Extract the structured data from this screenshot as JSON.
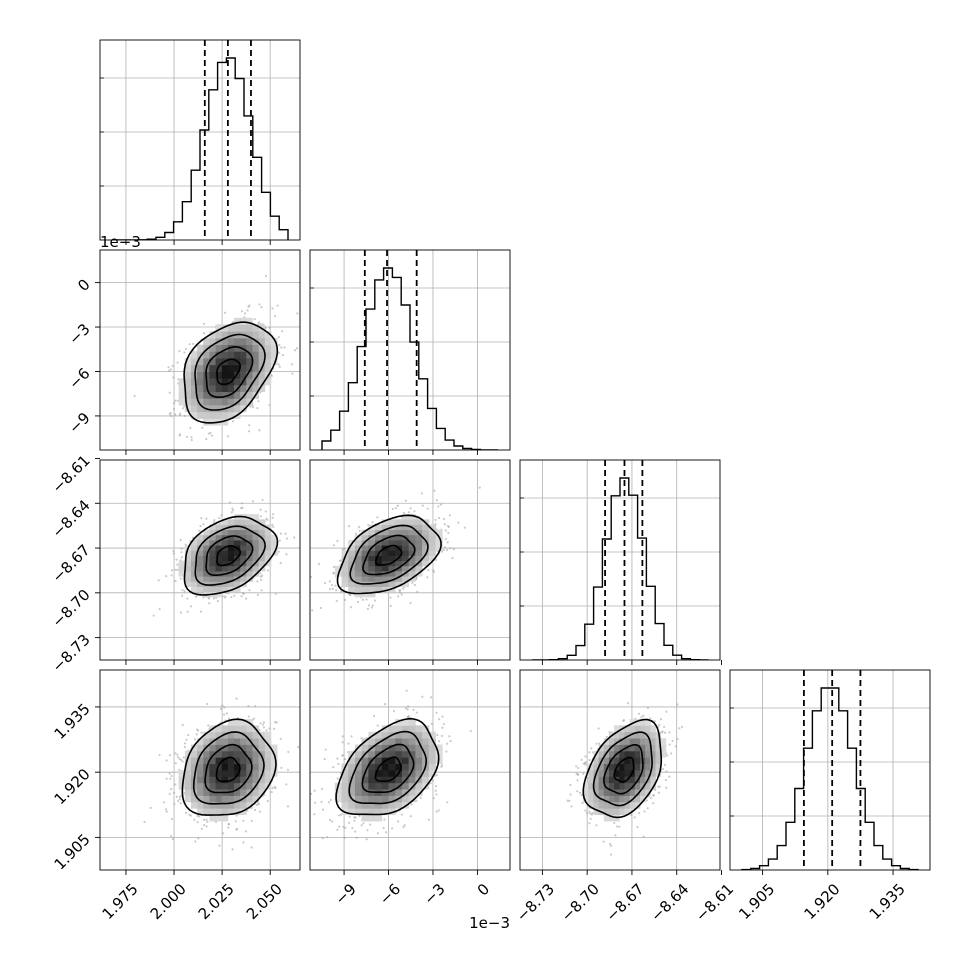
{
  "chart_data": {
    "type": "corner",
    "style": {
      "grid": true,
      "frame_color": "#000000",
      "grid_color": "#b0b0b0",
      "point_color": "#9e9e9e"
    },
    "parameters": [
      {
        "index": 0,
        "range": [
          1.9615,
          2.0655
        ],
        "ticks": [
          1.975,
          2.0,
          2.025,
          2.05
        ],
        "tick_labels": [
          "1.975",
          "2.000",
          "2.025",
          "2.050"
        ],
        "offset_text": "",
        "mean": 2.028,
        "sd": 0.012,
        "quantiles": [
          2.016,
          2.028,
          2.04
        ]
      },
      {
        "index": 1,
        "range": [
          -11.3,
          2.2
        ],
        "ticks": [
          -9,
          -6,
          -3,
          0
        ],
        "tick_labels": [
          "−9",
          "−6",
          "−3",
          "0"
        ],
        "offset_text": "1e−3",
        "mean": -6.0,
        "sd": 1.7,
        "quantiles": [
          -7.6,
          -6.1,
          -4.1
        ]
      },
      {
        "index": 2,
        "range": [
          -8.745,
          -8.611
        ],
        "ticks": [
          -8.73,
          -8.7,
          -8.67,
          -8.64,
          -8.61
        ],
        "tick_labels": [
          "−8.73",
          "−8.70",
          "−8.67",
          "−8.64",
          "−8.61"
        ],
        "offset_text": "",
        "mean": -8.675,
        "sd": 0.013,
        "quantiles": [
          -8.688,
          -8.675,
          -8.663
        ]
      },
      {
        "index": 3,
        "range": [
          1.8975,
          1.9435
        ],
        "ticks": [
          1.905,
          1.92,
          1.935
        ],
        "tick_labels": [
          "1.905",
          "1.920",
          "1.935"
        ],
        "offset_text": "",
        "mean": 1.9205,
        "sd": 0.0055,
        "quantiles": [
          1.9145,
          1.921,
          1.9275
        ]
      }
    ],
    "correlations": [
      {
        "pair": [
          1,
          0
        ],
        "rho": 0.35
      },
      {
        "pair": [
          2,
          0
        ],
        "rho": 0.35
      },
      {
        "pair": [
          2,
          1
        ],
        "rho": 0.42
      },
      {
        "pair": [
          3,
          0
        ],
        "rho": 0.2
      },
      {
        "pair": [
          3,
          1
        ],
        "rho": 0.4
      },
      {
        "pair": [
          3,
          2
        ],
        "rho": 0.38
      }
    ],
    "contour_levels_sigma": [
      0.5,
      1.0,
      1.5,
      2.0
    ]
  }
}
